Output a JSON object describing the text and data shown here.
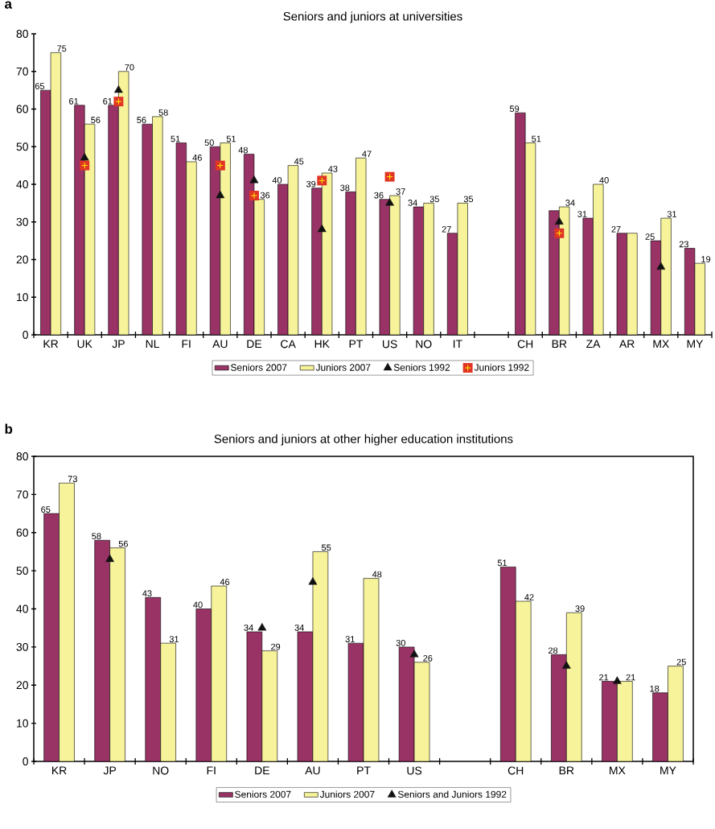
{
  "chart_data": [
    {
      "type": "bar",
      "title": "Seniors and juniors  at universities",
      "annotations": [
        "a"
      ],
      "categories": [
        "KR",
        "UK",
        "JP",
        "NL",
        "FI",
        "AU",
        "DE",
        "CA",
        "HK",
        "PT",
        "US",
        "NO",
        "IT",
        null,
        "CH",
        "BR",
        "ZA",
        "AR",
        "MX",
        "MY"
      ],
      "series": [
        {
          "name": "Seniors 2007",
          "color": "#993366",
          "values": [
            65,
            61,
            61,
            56,
            51,
            50,
            48,
            40,
            39,
            38,
            36,
            34,
            27,
            null,
            59,
            33,
            31,
            27,
            25,
            23
          ],
          "value_labels": [
            "65",
            "61",
            "61",
            "56",
            "51",
            "50",
            "48",
            "40",
            "39",
            "38",
            "36",
            "34",
            "27",
            null,
            "59",
            null,
            "31",
            "27",
            "25",
            "23"
          ]
        },
        {
          "name": "Juniors 2007",
          "color": "#f7f39b",
          "values": [
            75,
            56,
            70,
            58,
            46,
            51,
            36,
            45,
            43,
            47,
            37,
            35,
            35,
            null,
            51,
            34,
            40,
            27,
            31,
            19
          ],
          "value_labels": [
            "75",
            "56",
            "70",
            "58",
            "46",
            "51",
            "36",
            "45",
            "43",
            "47",
            "37",
            "35",
            "35",
            null,
            "51",
            "34",
            "40",
            null,
            "31",
            "19"
          ]
        },
        {
          "name": "Seniors 1992",
          "type": "scatter",
          "marker": "triangle",
          "color": "#111111",
          "values": [
            null,
            47,
            65,
            null,
            null,
            37,
            41,
            null,
            28,
            null,
            35,
            null,
            null,
            null,
            null,
            30,
            null,
            null,
            18,
            null
          ]
        },
        {
          "name": "Juniors 1992",
          "type": "scatter",
          "marker": "square",
          "color": "#e03424",
          "values": [
            null,
            45,
            62,
            null,
            null,
            45,
            37,
            null,
            41,
            null,
            42,
            null,
            null,
            null,
            null,
            27,
            null,
            null,
            null,
            null
          ]
        }
      ],
      "ylim": [
        0,
        80
      ],
      "yticks": [
        0,
        10,
        20,
        30,
        40,
        50,
        60,
        70,
        80
      ],
      "legend": "bottom"
    },
    {
      "type": "bar",
      "title": "Seniors and juniors at other higher education institutions",
      "annotations": [
        "b"
      ],
      "categories": [
        "KR",
        "JP",
        "NO",
        "FI",
        "DE",
        "AU",
        "PT",
        "US",
        null,
        "CH",
        "BR",
        "MX",
        "MY"
      ],
      "series": [
        {
          "name": "Seniors 2007",
          "color": "#993366",
          "values": [
            65,
            58,
            43,
            40,
            34,
            34,
            31,
            30,
            null,
            51,
            28,
            21,
            18
          ],
          "value_labels": [
            "65",
            "58",
            "43",
            "40",
            "34",
            "34",
            "31",
            "30",
            null,
            "51",
            "28",
            "21",
            "18"
          ]
        },
        {
          "name": "Juniors 2007",
          "color": "#f7f39b",
          "values": [
            73,
            56,
            31,
            46,
            29,
            55,
            48,
            26,
            null,
            42,
            39,
            21,
            25
          ],
          "value_labels": [
            "73",
            "56",
            "31",
            "46",
            "29",
            "55",
            "48",
            "26",
            null,
            "42",
            "39",
            "21",
            "25"
          ]
        },
        {
          "name": "Seniors and Juniors 1992",
          "type": "scatter",
          "marker": "triangle",
          "color": "#111111",
          "values": [
            null,
            53,
            null,
            null,
            35,
            47,
            null,
            28,
            null,
            null,
            25,
            21,
            null
          ]
        }
      ],
      "ylim": [
        0,
        80
      ],
      "yticks": [
        0,
        10,
        20,
        30,
        40,
        50,
        60,
        70,
        80
      ],
      "legend": "bottom"
    }
  ]
}
